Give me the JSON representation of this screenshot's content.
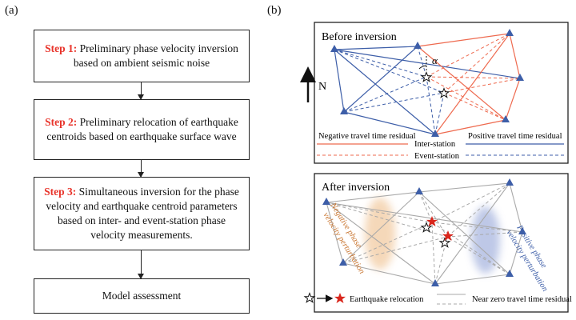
{
  "panel_a": {
    "label": "(a)",
    "steps": [
      {
        "label": "Step 1:",
        "text": "Preliminary phase velocity inversion based on ambient seismic noise"
      },
      {
        "label": "Step 2:",
        "text": "Preliminary relocation of earthquake centroids based on earthquake surface wave"
      },
      {
        "label": "Step 3:",
        "text": "Simultaneous inversion for the phase velocity and earthquake centroid parameters based on inter- and event-station phase velocity measurements."
      },
      {
        "label": "",
        "text": "Model assessment"
      }
    ]
  },
  "panel_b": {
    "label": "(b)",
    "before": {
      "title": "Before inversion",
      "north": "N",
      "alpha": "α",
      "legend": {
        "negative": "Negative travel time residual",
        "positive": "Positive travel time residual",
        "inter_station": "Inter-station",
        "event_station": "Event-station"
      }
    },
    "after": {
      "title": "After inversion",
      "negative_perturbation_line1": "Negative phase",
      "negative_perturbation_line2": "velocity perturbation",
      "positive_perturbation_line1": "Positive phase",
      "positive_perturbation_line2": "velocity perturbation",
      "legend": {
        "relocation": "Earthquake relocation",
        "near_zero": "Near zero travel time residual"
      }
    },
    "colors": {
      "negative": "#ee6a4f",
      "positive": "#3d5ea8",
      "neutral": "#a9a9a9",
      "station": "#3d5ea8",
      "star": "#d9261c"
    }
  }
}
